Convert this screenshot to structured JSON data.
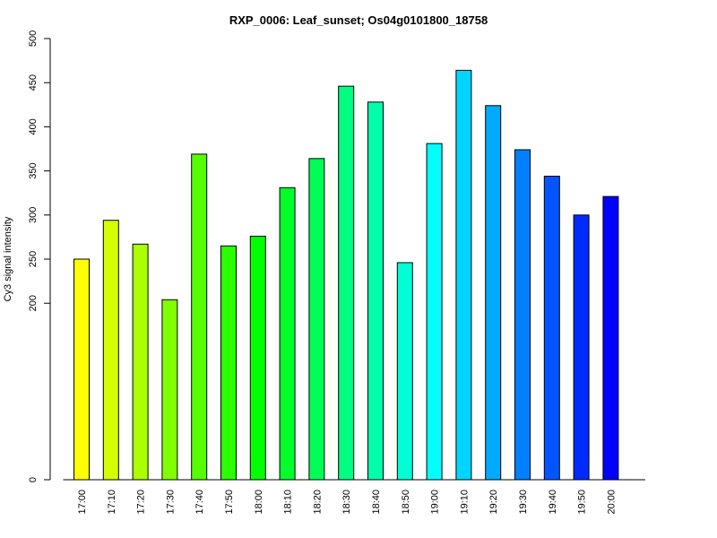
{
  "chart_data": {
    "type": "bar",
    "title": "RXP_0006: Leaf_sunset; Os04g0101800_18758",
    "xlabel": "",
    "ylabel": "Cy3 signal intensity",
    "ylim": [
      0,
      500
    ],
    "yticks": [
      0,
      200,
      250,
      300,
      350,
      400,
      450,
      500
    ],
    "categories": [
      "17:00",
      "17:10",
      "17:20",
      "17:30",
      "17:40",
      "17:50",
      "18:00",
      "18:10",
      "18:20",
      "18:30",
      "18:40",
      "18:50",
      "19:00",
      "19:10",
      "19:20",
      "19:30",
      "19:40",
      "19:50",
      "20:00"
    ],
    "values": [
      250,
      294,
      267,
      204,
      369,
      265,
      276,
      331,
      364,
      446,
      428,
      246,
      381,
      464,
      424,
      374,
      344,
      300,
      321
    ],
    "colors": [
      "#FFFF00",
      "#D5FF00",
      "#AAFF00",
      "#80FF00",
      "#55FF00",
      "#2BFF00",
      "#00FF00",
      "#00FF2B",
      "#00FF55",
      "#00FF80",
      "#00FFAA",
      "#00FFD5",
      "#00FFFF",
      "#00D5FF",
      "#00AAFF",
      "#0080FF",
      "#0055FF",
      "#002BFF",
      "#0000FF"
    ],
    "grid": false,
    "legend": "none"
  }
}
